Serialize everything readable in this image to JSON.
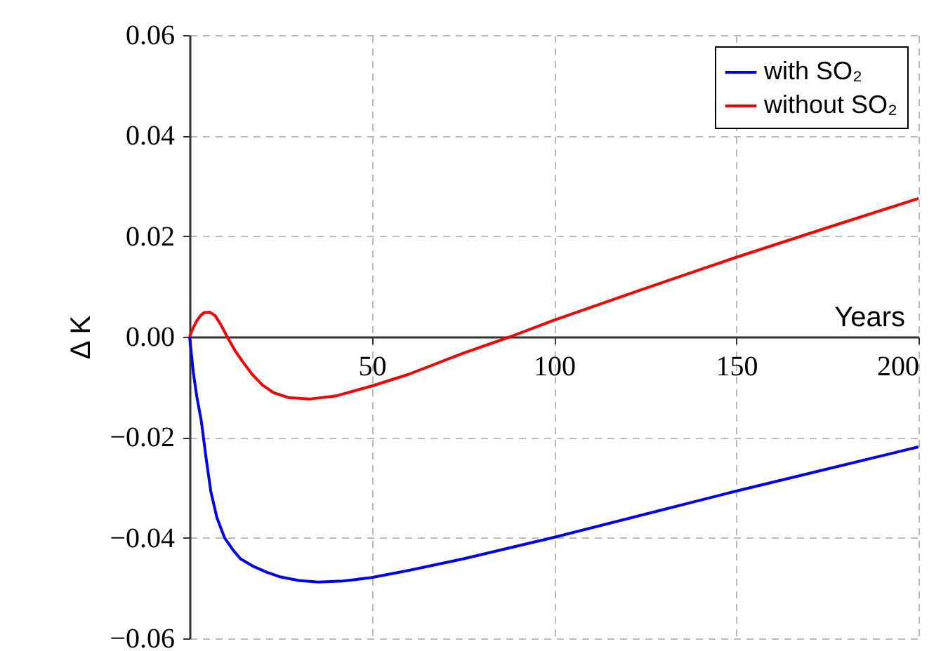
{
  "chart_data": {
    "type": "line",
    "xlabel": "Years",
    "ylabel": "Δ K",
    "xlim": [
      0,
      200
    ],
    "ylim": [
      -0.06,
      0.06
    ],
    "xticks": [
      50,
      100,
      150,
      200
    ],
    "yticks": [
      {
        "value": -0.06,
        "label": "−0.06"
      },
      {
        "value": -0.04,
        "label": "−0.04"
      },
      {
        "value": -0.02,
        "label": "−0.02"
      },
      {
        "value": 0,
        "label": "0.00"
      },
      {
        "value": 0.02,
        "label": "0.02"
      },
      {
        "value": 0.04,
        "label": "0.04"
      },
      {
        "value": 0.06,
        "label": "0.06"
      }
    ],
    "grid": true,
    "legend": "top right",
    "line_style": "solid",
    "marker": "none",
    "series": [
      {
        "name": "with SO₂",
        "color": "#0000ff",
        "x": [
          0,
          1,
          2,
          3.2,
          4.5,
          5.8,
          7.5,
          9.6,
          12,
          14,
          17.3,
          21,
          25,
          30,
          35.3,
          42,
          50,
          60,
          75,
          100,
          125,
          150,
          175,
          200
        ],
        "values": [
          0,
          -0.007,
          -0.012,
          -0.0167,
          -0.024,
          -0.0307,
          -0.036,
          -0.04,
          -0.0425,
          -0.0442,
          -0.0456,
          -0.0468,
          -0.0478,
          -0.0485,
          -0.0488,
          -0.0486,
          -0.0479,
          -0.0465,
          -0.0442,
          -0.0399,
          -0.0353,
          -0.0307,
          -0.0263,
          -0.0219
        ]
      },
      {
        "name": "without SO₂",
        "color": "#ff0000",
        "x": [
          0,
          1,
          2,
          3,
          4,
          5.5,
          7,
          8.5,
          10.3,
          12.5,
          14.6,
          17.3,
          20,
          23,
          27,
          32.8,
          40,
          50,
          60,
          75,
          88,
          100,
          125,
          150,
          175,
          200
        ],
        "values": [
          0,
          0.0018,
          0.0032,
          0.0042,
          0.0048,
          0.0049,
          0.0042,
          0.0025,
          0,
          -0.0028,
          -0.005,
          -0.0076,
          -0.0096,
          -0.0111,
          -0.0121,
          -0.0124,
          -0.0118,
          -0.0098,
          -0.0075,
          -0.0033,
          0,
          0.0033,
          0.0096,
          0.0158,
          0.0217,
          0.0275
        ]
      }
    ]
  }
}
